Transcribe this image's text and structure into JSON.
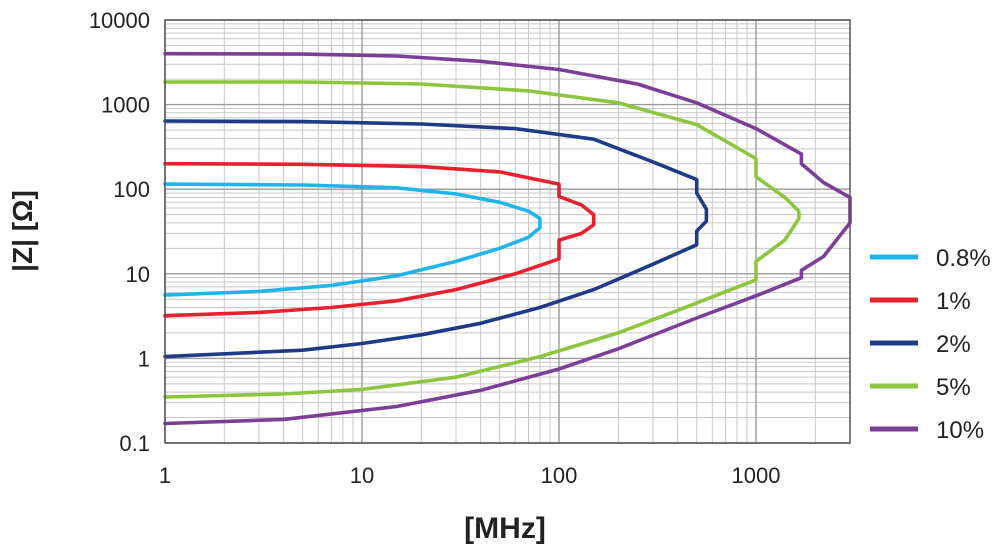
{
  "chart_data": {
    "type": "line",
    "xlabel": "[MHz]",
    "ylabel": "|Z| [Ω]",
    "x_scale": "log",
    "y_scale": "log",
    "xlim": [
      1,
      3000
    ],
    "ylim": [
      0.1,
      10000
    ],
    "x_ticks": [
      "1",
      "10",
      "100",
      "1000"
    ],
    "y_ticks": [
      "0.1",
      "1",
      "10",
      "100",
      "1000",
      "10000"
    ],
    "grid": true,
    "legend_position": "right",
    "series": [
      {
        "name": "0.8%",
        "color": "#1fb5e8",
        "points": [
          [
            1,
            115
          ],
          [
            5,
            112
          ],
          [
            15,
            104
          ],
          [
            30,
            88
          ],
          [
            50,
            70
          ],
          [
            70,
            55
          ],
          [
            80,
            45
          ],
          [
            80,
            35
          ],
          [
            70,
            27
          ],
          [
            50,
            20
          ],
          [
            30,
            14
          ],
          [
            15,
            9.5
          ],
          [
            7,
            7.3
          ],
          [
            3,
            6.2
          ],
          [
            1,
            5.6
          ]
        ]
      },
      {
        "name": "1%",
        "color": "#e8212f",
        "points": [
          [
            1,
            200
          ],
          [
            5,
            197
          ],
          [
            20,
            185
          ],
          [
            50,
            160
          ],
          [
            100,
            115
          ],
          [
            100,
            82
          ],
          [
            130,
            65
          ],
          [
            150,
            50
          ],
          [
            150,
            38
          ],
          [
            130,
            30
          ],
          [
            100,
            25
          ],
          [
            100,
            15
          ],
          [
            60,
            10
          ],
          [
            30,
            6.5
          ],
          [
            15,
            4.8
          ],
          [
            7,
            4
          ],
          [
            3,
            3.5
          ],
          [
            1,
            3.2
          ]
        ]
      },
      {
        "name": "2%",
        "color": "#1f3b87",
        "points": [
          [
            1,
            640
          ],
          [
            5,
            630
          ],
          [
            20,
            590
          ],
          [
            60,
            520
          ],
          [
            150,
            390
          ],
          [
            300,
            210
          ],
          [
            500,
            130
          ],
          [
            500,
            90
          ],
          [
            560,
            58
          ],
          [
            560,
            42
          ],
          [
            500,
            32
          ],
          [
            500,
            22
          ],
          [
            300,
            13
          ],
          [
            150,
            6.5
          ],
          [
            80,
            4
          ],
          [
            40,
            2.6
          ],
          [
            20,
            1.9
          ],
          [
            10,
            1.5
          ],
          [
            5,
            1.25
          ],
          [
            1,
            1.05
          ]
        ]
      },
      {
        "name": "5%",
        "color": "#8cc63f",
        "points": [
          [
            1,
            1850
          ],
          [
            5,
            1850
          ],
          [
            20,
            1750
          ],
          [
            70,
            1450
          ],
          [
            200,
            1050
          ],
          [
            500,
            580
          ],
          [
            1000,
            230
          ],
          [
            1000,
            140
          ],
          [
            1400,
            80
          ],
          [
            1650,
            55
          ],
          [
            1650,
            45
          ],
          [
            1400,
            25
          ],
          [
            1000,
            14
          ],
          [
            1000,
            8.5
          ],
          [
            500,
            4.5
          ],
          [
            200,
            2
          ],
          [
            80,
            1.05
          ],
          [
            30,
            0.6
          ],
          [
            10,
            0.43
          ],
          [
            4,
            0.38
          ],
          [
            1,
            0.35
          ]
        ]
      },
      {
        "name": "10%",
        "color": "#7b3f98",
        "points": [
          [
            1,
            4000
          ],
          [
            5,
            3950
          ],
          [
            15,
            3750
          ],
          [
            40,
            3250
          ],
          [
            100,
            2600
          ],
          [
            250,
            1750
          ],
          [
            500,
            1050
          ],
          [
            1000,
            520
          ],
          [
            1700,
            260
          ],
          [
            1700,
            200
          ],
          [
            2200,
            120
          ],
          [
            3000,
            80
          ],
          [
            3000,
            40
          ],
          [
            2200,
            16
          ],
          [
            1700,
            11
          ],
          [
            1700,
            9
          ],
          [
            1000,
            5.5
          ],
          [
            500,
            3
          ],
          [
            200,
            1.3
          ],
          [
            100,
            0.75
          ],
          [
            40,
            0.42
          ],
          [
            15,
            0.27
          ],
          [
            4,
            0.19
          ],
          [
            1,
            0.17
          ]
        ]
      }
    ]
  }
}
